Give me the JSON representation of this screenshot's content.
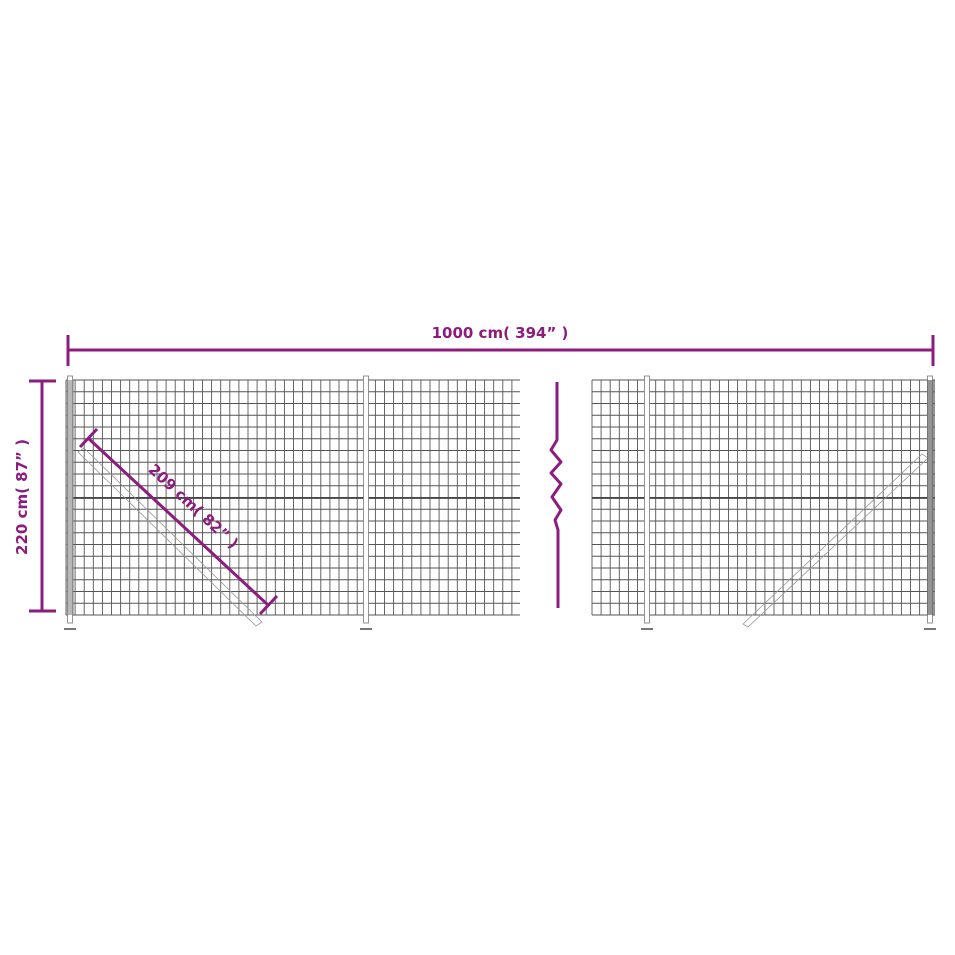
{
  "colors": {
    "dimension": "#8c1d7e",
    "fence": "#555555",
    "background": "#ffffff"
  },
  "dimensions": {
    "width_label": "1000 cm( 394” )",
    "height_label": "220 cm( 87” )",
    "diagonal_label": "209 cm( 82” )"
  },
  "fence": {
    "break_symbol": "zigzag-break"
  }
}
